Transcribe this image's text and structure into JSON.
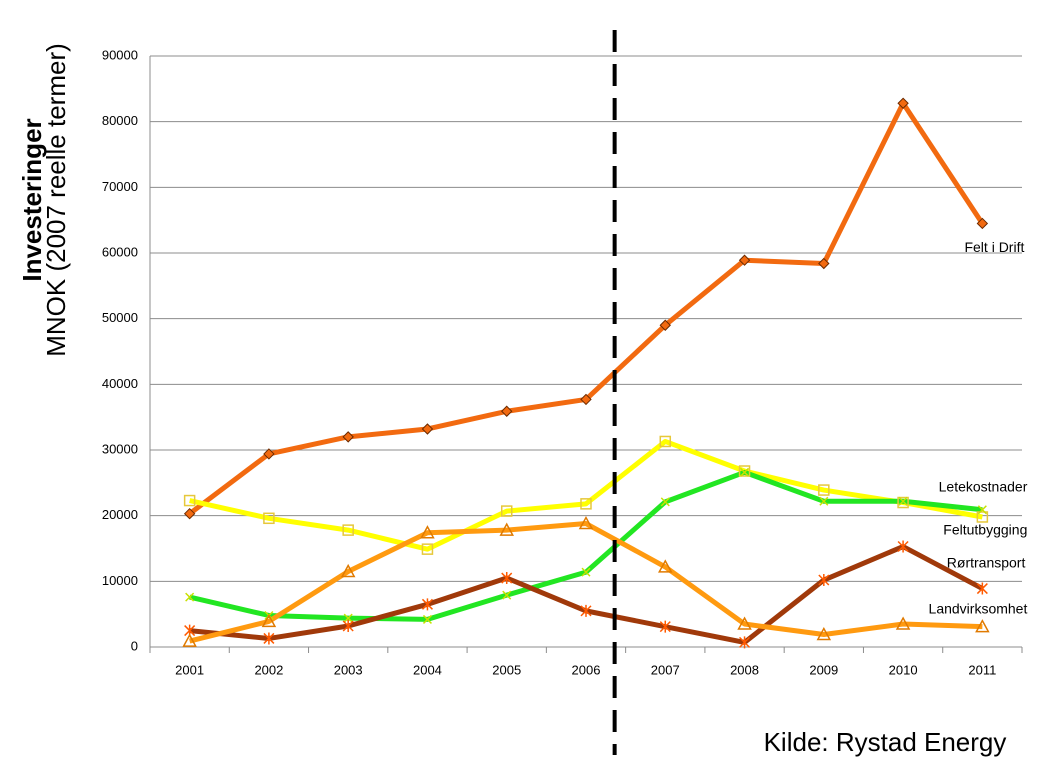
{
  "chart_data": {
    "type": "line",
    "y_label_bold": "Investeringer",
    "y_label": "MNOK (2007 reelle termer)",
    "source": "Kilde: Rystad Energy",
    "categories": [
      "2001",
      "2002",
      "2003",
      "2004",
      "2005",
      "2006",
      "2007",
      "2008",
      "2009",
      "2010",
      "2011"
    ],
    "series": [
      {
        "name": "Felt i Drift",
        "color": "#f26a10",
        "marker": "diamond",
        "values": [
          20300,
          29400,
          32000,
          33200,
          35900,
          37700,
          49000,
          58900,
          58400,
          82800,
          64500
        ]
      },
      {
        "name": "Feltutbygging",
        "color": "#ffff00",
        "marker": "square",
        "values": [
          22300,
          19600,
          17800,
          14900,
          20700,
          21800,
          31300,
          26800,
          23900,
          22000,
          19800
        ]
      },
      {
        "name": "Letekostnader",
        "color": "#22e622",
        "marker": "x",
        "values": [
          7600,
          4800,
          4400,
          4200,
          7900,
          11400,
          22100,
          26600,
          22200,
          22200,
          20900
        ]
      },
      {
        "name": "Rørtransport",
        "color": "#a0390a",
        "marker": "star",
        "values": [
          2500,
          1300,
          3200,
          6500,
          10500,
          5500,
          3100,
          700,
          10200,
          15300,
          8900
        ]
      },
      {
        "name": "Landvirksomhet",
        "color": "#ff9a10",
        "marker": "triangle",
        "values": [
          900,
          3900,
          11500,
          17400,
          17800,
          18800,
          12200,
          3500,
          1900,
          3500,
          3100
        ]
      }
    ],
    "ylim": [
      0,
      90000
    ],
    "yticks": [
      0,
      10000,
      20000,
      30000,
      40000,
      50000,
      60000,
      70000,
      80000,
      90000
    ],
    "grid": true
  }
}
